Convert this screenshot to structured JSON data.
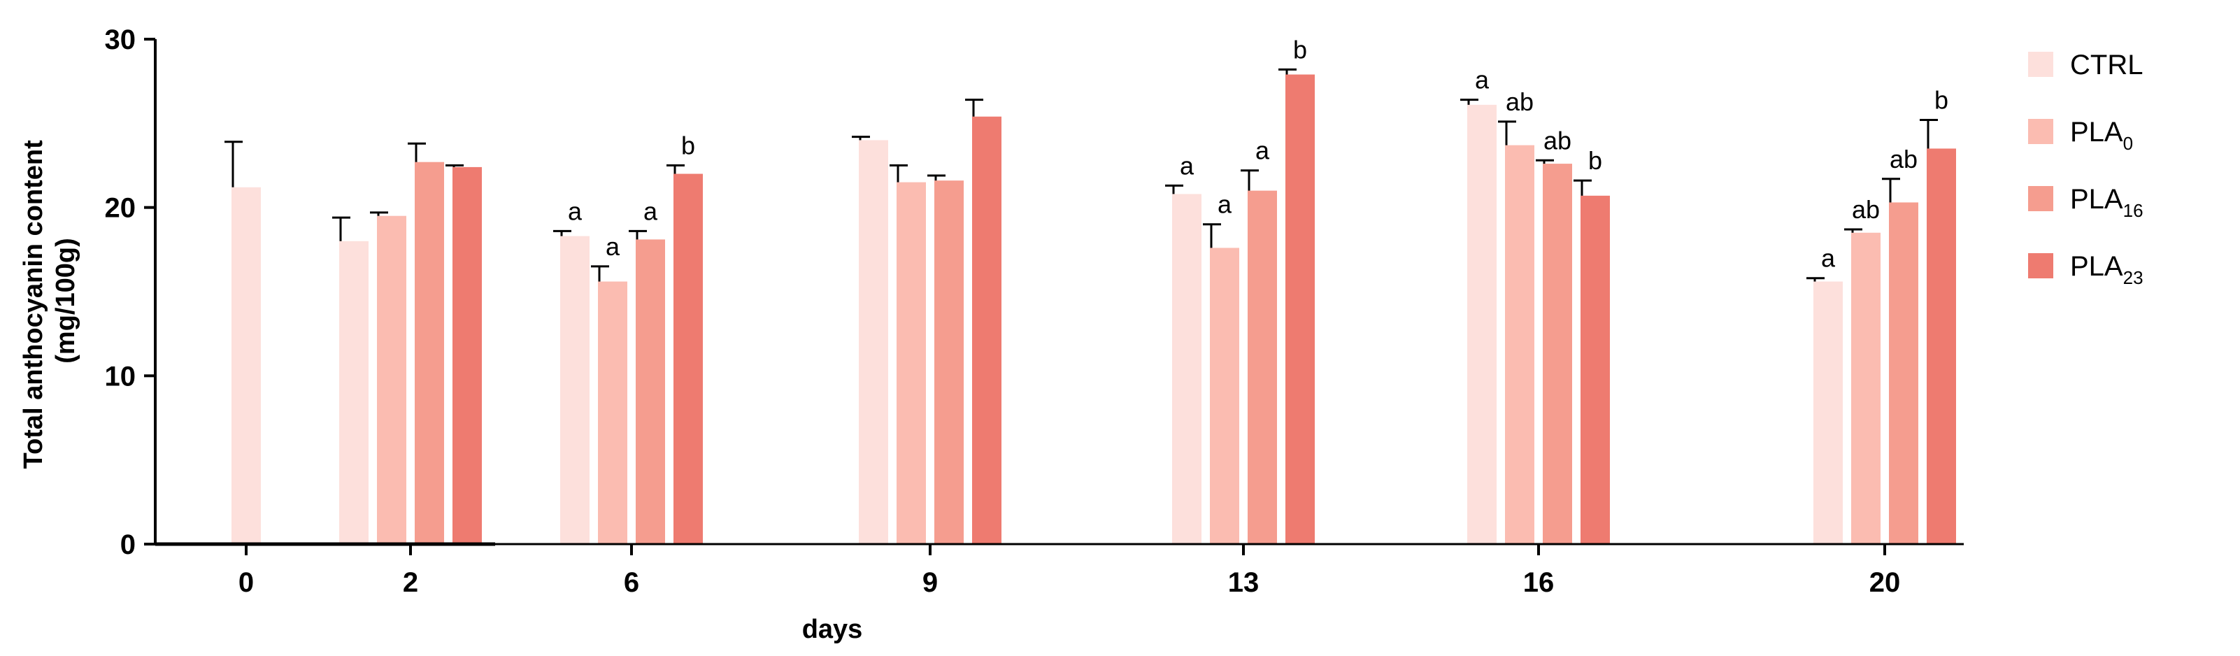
{
  "chart_data": {
    "type": "bar",
    "title": "",
    "xlabel": "days",
    "ylabel": [
      "Total anthocyanin content",
      "(mg/100g)"
    ],
    "ylim": [
      0,
      30
    ],
    "yticks": [
      0,
      10,
      20,
      30
    ],
    "categories": [
      "0",
      "2",
      "6",
      "9",
      "13",
      "16",
      "20"
    ],
    "grid": false,
    "legend_position": "right",
    "series": [
      {
        "name": "CTRL",
        "name_main": "CTRL",
        "name_sub": "",
        "color": "#fde0dc",
        "values": [
          21.2,
          18.0,
          18.3,
          24.0,
          20.8,
          26.1,
          15.6
        ],
        "errors": [
          2.7,
          1.4,
          0.3,
          0.2,
          0.5,
          0.3,
          0.2
        ],
        "labels": [
          "",
          "",
          "a",
          "",
          "a",
          "a",
          "a"
        ]
      },
      {
        "name": "PLA0",
        "name_main": "PLA",
        "name_sub": "0",
        "color": "#fbbcb1",
        "values": [
          null,
          19.5,
          15.6,
          21.5,
          17.6,
          23.7,
          18.5
        ],
        "errors": [
          null,
          0.2,
          0.9,
          1.0,
          1.4,
          1.4,
          0.2
        ],
        "labels": [
          "",
          "",
          "a",
          "",
          "a",
          "ab",
          "ab"
        ]
      },
      {
        "name": "PLA16",
        "name_main": "PLA",
        "name_sub": "16",
        "color": "#f59d8f",
        "values": [
          null,
          22.7,
          18.1,
          21.6,
          21.0,
          22.6,
          20.3
        ],
        "errors": [
          null,
          1.1,
          0.5,
          0.3,
          1.2,
          0.2,
          1.4
        ],
        "labels": [
          "",
          "",
          "a",
          "",
          "a",
          "ab",
          "ab"
        ]
      },
      {
        "name": "PLA23",
        "name_main": "PLA",
        "name_sub": "23",
        "color": "#ee7b70",
        "values": [
          null,
          22.4,
          22.0,
          25.4,
          27.9,
          20.7,
          23.5
        ],
        "errors": [
          null,
          0.1,
          0.5,
          1.0,
          0.3,
          0.9,
          1.7
        ],
        "labels": [
          "",
          "",
          "b",
          "",
          "b",
          "b",
          "b"
        ]
      }
    ]
  }
}
